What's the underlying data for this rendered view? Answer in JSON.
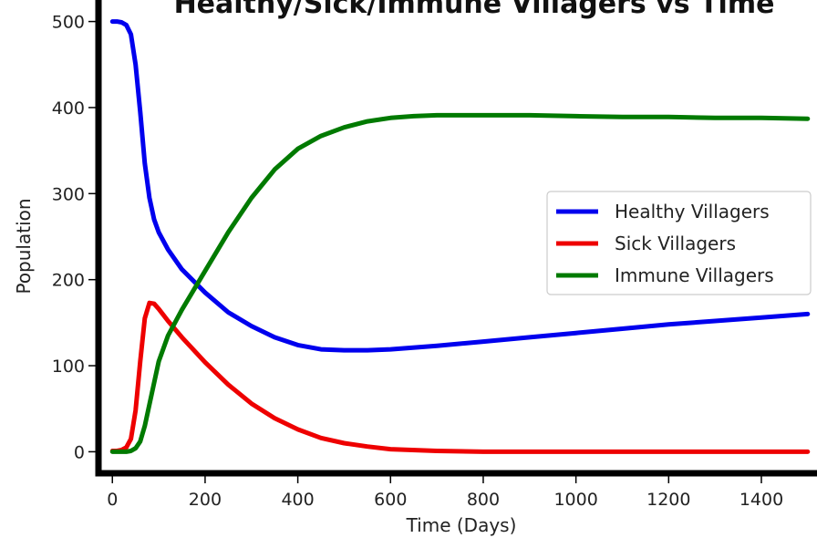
{
  "chart_data": {
    "type": "line",
    "title": "Healthy/Sick/Immune Villagers vs Time",
    "xlabel": "Time (Days)",
    "ylabel": "Population",
    "xlim": [
      -30,
      1520
    ],
    "ylim": [
      -25,
      525
    ],
    "xticks": [
      0,
      200,
      400,
      600,
      800,
      1000,
      1200,
      1400
    ],
    "yticks": [
      0,
      100,
      200,
      300,
      400,
      500
    ],
    "grid": false,
    "legend_position": "center-right",
    "series": [
      {
        "name": "Healthy Villagers",
        "color": "#0000ee",
        "x": [
          0,
          10,
          20,
          30,
          40,
          50,
          60,
          70,
          80,
          90,
          100,
          120,
          150,
          200,
          250,
          300,
          350,
          400,
          450,
          500,
          550,
          600,
          700,
          800,
          900,
          1000,
          1100,
          1200,
          1300,
          1400,
          1500
        ],
        "y": [
          500,
          500,
          499,
          496,
          485,
          450,
          395,
          335,
          295,
          270,
          255,
          235,
          212,
          185,
          162,
          146,
          133,
          124,
          119,
          118,
          118,
          119,
          123,
          128,
          133,
          138,
          143,
          148,
          152,
          156,
          160
        ]
      },
      {
        "name": "Sick Villagers",
        "color": "#ee0000",
        "x": [
          0,
          10,
          20,
          30,
          40,
          50,
          60,
          70,
          80,
          90,
          100,
          120,
          150,
          200,
          250,
          300,
          350,
          400,
          450,
          500,
          550,
          600,
          700,
          800,
          900,
          1000,
          1100,
          1200,
          1300,
          1400,
          1500
        ],
        "y": [
          1,
          1,
          2,
          5,
          15,
          48,
          105,
          155,
          173,
          172,
          166,
          152,
          133,
          104,
          78,
          56,
          39,
          26,
          16,
          10,
          6,
          3,
          1,
          0,
          0,
          0,
          0,
          0,
          0,
          0,
          0
        ]
      },
      {
        "name": "Immune Villagers",
        "color": "#007a00",
        "x": [
          0,
          10,
          20,
          30,
          40,
          50,
          60,
          70,
          80,
          90,
          100,
          120,
          150,
          200,
          250,
          300,
          350,
          400,
          450,
          500,
          550,
          600,
          650,
          700,
          800,
          900,
          1000,
          1100,
          1200,
          1300,
          1400,
          1500
        ],
        "y": [
          0,
          0,
          0,
          0,
          1,
          4,
          12,
          30,
          55,
          80,
          105,
          135,
          165,
          210,
          255,
          295,
          328,
          352,
          367,
          377,
          384,
          388,
          390,
          391,
          391,
          391,
          390,
          389,
          389,
          388,
          388,
          387
        ]
      }
    ]
  }
}
